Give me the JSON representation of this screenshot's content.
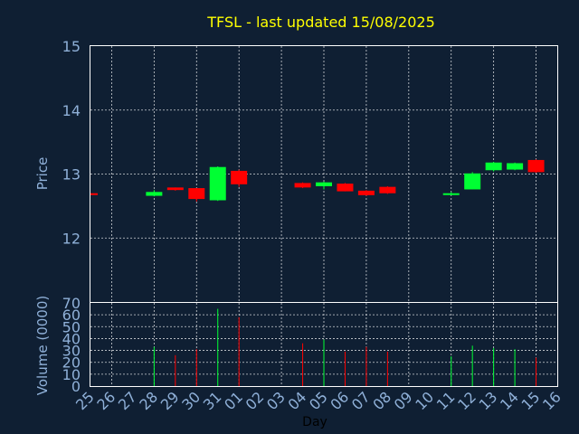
{
  "chart_data": {
    "type": "candlestick",
    "title": "TFSL - last updated 15/08/2025",
    "ylabel": "Price",
    "volume_ylabel": "Volume (0000)",
    "xlabel": "Day",
    "ylim": [
      11.0,
      15.0
    ],
    "yticks": [
      12,
      13,
      14,
      15
    ],
    "volume_ylim": [
      0,
      70
    ],
    "volume_yticks": [
      0,
      10,
      20,
      30,
      40,
      50,
      60,
      70
    ],
    "x_ticks": [
      "25",
      "26",
      "27",
      "28",
      "29",
      "30",
      "31",
      "01",
      "02",
      "03",
      "04",
      "05",
      "06",
      "07",
      "08",
      "09",
      "10",
      "11",
      "12",
      "13",
      "14",
      "15",
      "16"
    ],
    "grid": true,
    "up_color": "#00ff33",
    "down_color": "#ff0000",
    "candles": [
      {
        "x": "25",
        "open": 12.7,
        "close": 12.69,
        "high": 12.7,
        "low": 12.69,
        "volume": 0
      },
      {
        "x": "28",
        "open": 12.66,
        "close": 12.72,
        "high": 12.75,
        "low": 12.65,
        "volume": 33
      },
      {
        "x": "29",
        "open": 12.79,
        "close": 12.75,
        "high": 12.79,
        "low": 12.74,
        "volume": 26
      },
      {
        "x": "30",
        "open": 12.78,
        "close": 12.61,
        "high": 12.78,
        "low": 12.57,
        "volume": 31
      },
      {
        "x": "31",
        "open": 12.59,
        "close": 13.11,
        "high": 13.12,
        "low": 12.58,
        "volume": 65
      },
      {
        "x": "01",
        "open": 13.05,
        "close": 12.84,
        "high": 13.07,
        "low": 12.8,
        "volume": 58
      },
      {
        "x": "04",
        "open": 12.86,
        "close": 12.79,
        "high": 12.87,
        "low": 12.78,
        "volume": 36
      },
      {
        "x": "05",
        "open": 12.81,
        "close": 12.87,
        "high": 12.88,
        "low": 12.76,
        "volume": 39
      },
      {
        "x": "06",
        "open": 12.85,
        "close": 12.73,
        "high": 12.86,
        "low": 12.73,
        "volume": 29
      },
      {
        "x": "07",
        "open": 12.74,
        "close": 12.67,
        "high": 12.75,
        "low": 12.66,
        "volume": 33
      },
      {
        "x": "08",
        "open": 12.8,
        "close": 12.7,
        "high": 12.81,
        "low": 12.69,
        "volume": 29
      },
      {
        "x": "11",
        "open": 12.68,
        "close": 12.7,
        "high": 12.72,
        "low": 12.67,
        "volume": 25
      },
      {
        "x": "12",
        "open": 12.76,
        "close": 13.01,
        "high": 13.03,
        "low": 12.76,
        "volume": 34
      },
      {
        "x": "13",
        "open": 13.06,
        "close": 13.18,
        "high": 13.19,
        "low": 13.04,
        "volume": 32
      },
      {
        "x": "14",
        "open": 13.07,
        "close": 13.17,
        "high": 13.18,
        "low": 13.06,
        "volume": 31
      },
      {
        "x": "15",
        "open": 13.22,
        "close": 13.03,
        "high": 13.23,
        "low": 13.02,
        "volume": 24
      }
    ]
  }
}
